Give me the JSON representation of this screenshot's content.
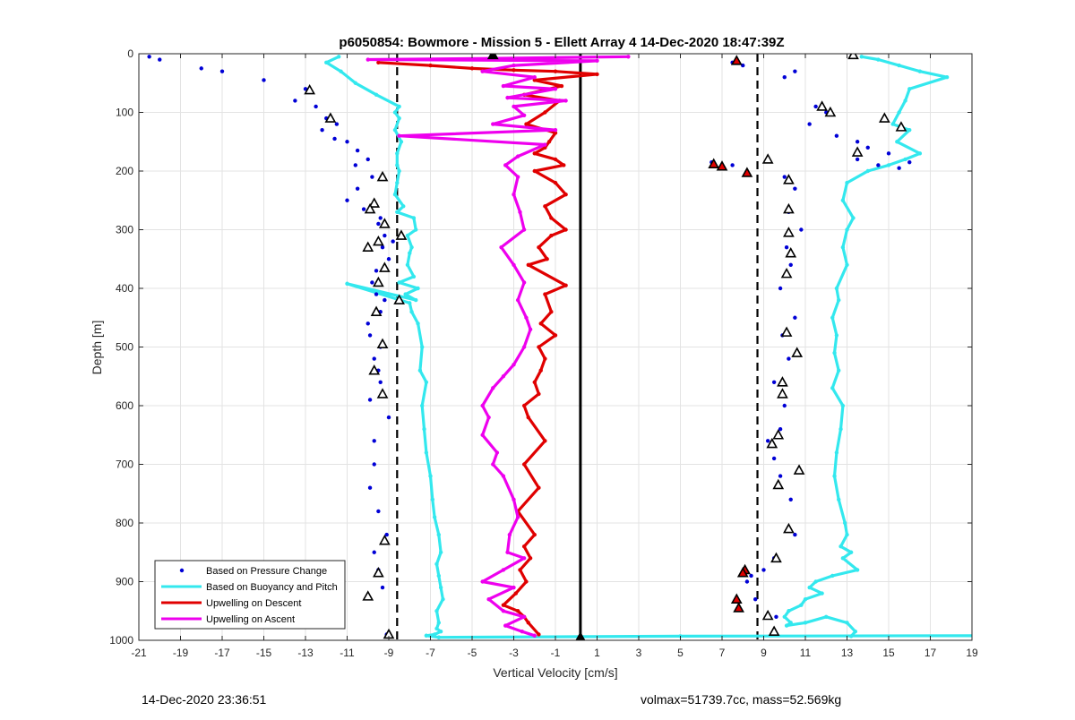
{
  "footer": {
    "timestamp": "14-Dec-2020 23:36:51",
    "summary": "volmax=51739.7cc, mass=52.569kg"
  },
  "chart_data": {
    "type": "scatter",
    "title": "p6050854: Bowmore - Mission 5 - Ellett Array 4 14-Dec-2020 18:47:39Z",
    "xlabel": "Vertical Velocity [cm/s]",
    "ylabel": "Depth [m]",
    "xlim": [
      -21,
      19
    ],
    "ylim": [
      0,
      1000
    ],
    "y_reversed": true,
    "grid": true,
    "x_ticks": [
      "-21",
      "-19",
      "-17",
      "-15",
      "-13",
      "-11",
      "-9",
      "-7",
      "-5",
      "-3",
      "-1",
      "1",
      "3",
      "5",
      "7",
      "9",
      "11",
      "13",
      "15",
      "17",
      "19"
    ],
    "y_ticks": [
      "0",
      "100",
      "200",
      "300",
      "400",
      "500",
      "600",
      "700",
      "800",
      "900",
      "1000"
    ],
    "legend_position": "bottom-left",
    "legend": [
      "Based on Pressure Change",
      "Based on Buoyancy and Pitch",
      "Upwelling on Descent",
      "Upwelling on Ascent"
    ],
    "colors": {
      "pressure": "#0000d6",
      "buoyancy": "#33e8ee",
      "descent": "#e00000",
      "ascent": "#ee00ee",
      "reference": "#000000"
    },
    "reference_lines": [
      {
        "x": 0.2,
        "style": "solid"
      },
      {
        "x": -8.6,
        "style": "dashed"
      },
      {
        "x": 8.7,
        "style": "dashed"
      }
    ],
    "series": [
      {
        "name": "Based on Pressure Change",
        "style": "points",
        "groups": [
          {
            "x": [
              -20.5,
              -20,
              -18,
              -17,
              -15,
              -13,
              -13.5,
              -12.5,
              -12,
              -11.5,
              -12.2,
              -11.6,
              -11,
              -10.5,
              -10,
              -10.6,
              -9.8,
              -10.5,
              -11,
              -10.2,
              -9.4,
              -9.5,
              -9.2,
              -8.8,
              -9.3,
              -9,
              -9.6,
              -9.8,
              -9.6,
              -9.2,
              -9.4,
              -10,
              -9.9,
              -9.4,
              -9.7,
              -9.5,
              -9.4,
              -9.9,
              -9,
              -9.7,
              -9.7,
              -9.9,
              -9.5,
              -9.1,
              -9.7,
              -9.5,
              -9.3,
              -9.1
            ],
            "y": [
              5,
              10,
              25,
              30,
              45,
              60,
              80,
              90,
              110,
              120,
              130,
              145,
              150,
              165,
              180,
              190,
              210,
              230,
              250,
              265,
              280,
              290,
              310,
              320,
              330,
              350,
              370,
              390,
              410,
              420,
              440,
              460,
              480,
              500,
              520,
              540,
              560,
              590,
              620,
              660,
              700,
              740,
              780,
              820,
              850,
              880,
              910,
              990
            ]
          },
          {
            "x": [
              7.5,
              8,
              10.5,
              10,
              11.5,
              12,
              11.2,
              12.5,
              13.5,
              14,
              15,
              13.5,
              16,
              14.5,
              15.5,
              6.5,
              7.5,
              10,
              10.5,
              10.2,
              10.8,
              10.1,
              10.3,
              9.8,
              10.5,
              9.9,
              10.2,
              9.5,
              10,
              9.8,
              9.2,
              9.5,
              9.8,
              10.3,
              10.5,
              9.5,
              9,
              8.4,
              8.2,
              8.6,
              9.6
            ],
            "y": [
              15,
              20,
              30,
              40,
              90,
              100,
              120,
              140,
              150,
              160,
              170,
              180,
              185,
              190,
              195,
              185,
              190,
              210,
              230,
              270,
              300,
              330,
              360,
              400,
              450,
              480,
              520,
              560,
              600,
              640,
              660,
              690,
              720,
              760,
              820,
              860,
              880,
              890,
              900,
              930,
              960
            ]
          }
        ]
      },
      {
        "name": "Based on Buoyancy and Pitch",
        "style": "line",
        "groups": [
          {
            "x": [
              -11.4,
              -12,
              -11.3,
              -10.6,
              -9.6,
              -8.5,
              -8.7,
              -8.5,
              -8.7,
              -8.4,
              -8.6,
              -8.6,
              -8.5,
              -8.6,
              -8.7,
              -8.3,
              -8.6,
              -7.8,
              -7.7,
              -8.1,
              -7.9,
              -8,
              -8.1,
              -7.8,
              -8.5,
              -7.6,
              -8.2,
              -7.7,
              -11,
              -8,
              -7.9,
              -7.6,
              -7.4,
              -7.5,
              -7.2,
              -7.4,
              -7.3,
              -7.2,
              -7,
              -6.9,
              -6.8,
              -6.6,
              -6.5,
              -6.7,
              -6.6,
              -6.5,
              -6.4,
              -6.7,
              -6.6,
              -6.7,
              -6.5,
              -6.8,
              -7.2,
              -6.6
            ],
            "y": [
              5,
              15,
              30,
              50,
              70,
              90,
              100,
              110,
              130,
              150,
              170,
              190,
              200,
              220,
              240,
              260,
              270,
              280,
              300,
              310,
              330,
              340,
              360,
              380,
              390,
              400,
              410,
              420,
              392,
              425,
              440,
              460,
              500,
              540,
              560,
              600,
              640,
              680,
              720,
              760,
              790,
              820,
              850,
              870,
              890,
              910,
              930,
              950,
              970,
              980,
              985,
              990,
              992,
              995
            ]
          },
          {
            "x": [
              -6.6,
              5,
              20
            ],
            "y": [
              995,
              993,
              992
            ]
          },
          {
            "x": [
              13.7,
              14.5,
              15.5,
              16.5,
              17.8,
              16,
              15.8,
              15.5,
              15.2,
              16,
              15.4,
              16.5,
              15.8,
              15,
              14,
              13,
              12.8,
              13.3,
              13,
              12.8,
              13,
              12.5,
              12.6,
              12.3,
              12.5,
              12.4,
              12.6,
              12.3,
              12.8,
              12.7,
              12.5,
              12.4,
              12.6,
              12.9,
              13,
              12.7,
              13.2,
              12.8,
              13.5,
              12.3,
              11.5,
              11.2,
              11.8,
              11,
              10.8,
              10.2,
              10,
              10.3,
              10.1,
              11,
              12,
              13,
              13.4,
              13.2
            ],
            "y": [
              5,
              10,
              20,
              30,
              40,
              60,
              80,
              100,
              120,
              130,
              150,
              170,
              180,
              190,
              200,
              220,
              250,
              280,
              300,
              330,
              360,
              400,
              420,
              450,
              480,
              510,
              540,
              570,
              600,
              640,
              680,
              720,
              760,
              800,
              820,
              840,
              850,
              860,
              880,
              890,
              900,
              910,
              920,
              930,
              940,
              950,
              960,
              970,
              975,
              970,
              960,
              970,
              985,
              993
            ]
          }
        ]
      },
      {
        "name": "Upwelling on Descent",
        "style": "line",
        "groups": [
          {
            "x": [
              -9.5,
              -7,
              -5,
              -3,
              -1,
              1,
              -2,
              -0.7,
              -2.5,
              -0.8,
              -1.5,
              -2.4,
              -1,
              -1.3,
              -1.5,
              -2,
              -1,
              -0.6,
              -2,
              -1,
              -0.5,
              -1.5,
              -1.2,
              -0.5,
              -1.2,
              -1.8,
              -1.4,
              -2.3,
              -0.5,
              -1.5,
              -1.2,
              -1.7,
              -1,
              -1.8,
              -1.5,
              -1.7,
              -2,
              -1.8,
              -2.5,
              -2.3,
              -1.5,
              -2.5,
              -1.8,
              -2.8,
              -2,
              -2.5,
              -2.2,
              -2.7,
              -2.4,
              -2.9,
              -3.5,
              -2.8,
              -2.5,
              -2.3,
              -1.8
            ],
            "y": [
              15,
              20,
              25,
              28,
              30,
              35,
              45,
              55,
              70,
              80,
              100,
              120,
              135,
              150,
              160,
              170,
              180,
              190,
              200,
              220,
              240,
              260,
              280,
              300,
              310,
              330,
              350,
              360,
              395,
              410,
              440,
              460,
              480,
              500,
              520,
              540,
              560,
              580,
              600,
              620,
              660,
              700,
              740,
              780,
              820,
              840,
              860,
              880,
              900,
              920,
              940,
              950,
              960,
              970,
              990
            ]
          }
        ]
      },
      {
        "name": "Upwelling on Ascent",
        "style": "line",
        "groups": [
          {
            "x": [
              2.5,
              -4,
              -10,
              1,
              -3,
              -4.5,
              -2,
              -3.5,
              -1,
              -3.3,
              -0.5,
              -3,
              -2.5,
              -4,
              -1,
              -8.5,
              -1.5,
              -2.8,
              -3.4,
              -2.8,
              -3,
              -2.7,
              -2.5,
              -3.6,
              -3,
              -2.5,
              -2.8,
              -2.4,
              -2.2,
              -2.5,
              -3,
              -3.5,
              -4,
              -4.5,
              -4.2,
              -4.5,
              -3.8,
              -4,
              -3.5,
              -3,
              -2.8,
              -3.2,
              -3.3,
              -2.5,
              -3.5,
              -4.5,
              -3,
              -4.2,
              -3.5,
              -2.5,
              -3.4,
              -2.6,
              -2
            ],
            "y": [
              5,
              8,
              10,
              12,
              20,
              30,
              40,
              55,
              60,
              75,
              80,
              90,
              105,
              120,
              130,
              140,
              155,
              175,
              190,
              210,
              240,
              270,
              300,
              330,
              360,
              390,
              420,
              450,
              470,
              500,
              530,
              550,
              570,
              600,
              620,
              650,
              680,
              700,
              720,
              760,
              790,
              820,
              850,
              860,
              880,
              900,
              910,
              930,
              950,
              960,
              975,
              985,
              992
            ]
          }
        ]
      },
      {
        "name": "Descent/Ascent Markers",
        "style": "triangles",
        "groups": [
          {
            "x": [
              -12.8,
              -11.8,
              -9.3,
              -9.7,
              -9.9,
              -9.2,
              -8.4,
              -9.5,
              -10,
              -9.2,
              -9.5,
              -8.5,
              -9.6,
              -9.3,
              -9.7,
              -9.3,
              -9.2,
              -9.5,
              -10,
              -9
            ],
            "y": [
              62,
              110,
              210,
              255,
              265,
              290,
              310,
              320,
              330,
              365,
              390,
              420,
              440,
              495,
              540,
              580,
              830,
              885,
              925,
              990
            ]
          },
          {
            "x": [
              13.3,
              11.8,
              12.2,
              14.8,
              15.6,
              13.5,
              9.2,
              10.2,
              10.2,
              10.2,
              10.3,
              10.1,
              10.1,
              10.6,
              9.9,
              9.9,
              9.7,
              9.4,
              10.7,
              9.7,
              10.2,
              9.6,
              9.2,
              9.5
            ],
            "y": [
              2,
              90,
              100,
              110,
              125,
              168,
              180,
              215,
              265,
              305,
              340,
              375,
              475,
              510,
              560,
              580,
              650,
              665,
              710,
              735,
              810,
              860,
              958,
              985
            ]
          },
          {
            "x": [
              7.7,
              6.6,
              7,
              8.2,
              8.1,
              8,
              7.7,
              7.8
            ],
            "y": [
              12,
              188,
              192,
              203,
              880,
              885,
              930,
              945
            ]
          },
          {
            "x": [
              -4,
              0.2
            ],
            "y": [
              2,
              995
            ]
          }
        ]
      }
    ]
  }
}
